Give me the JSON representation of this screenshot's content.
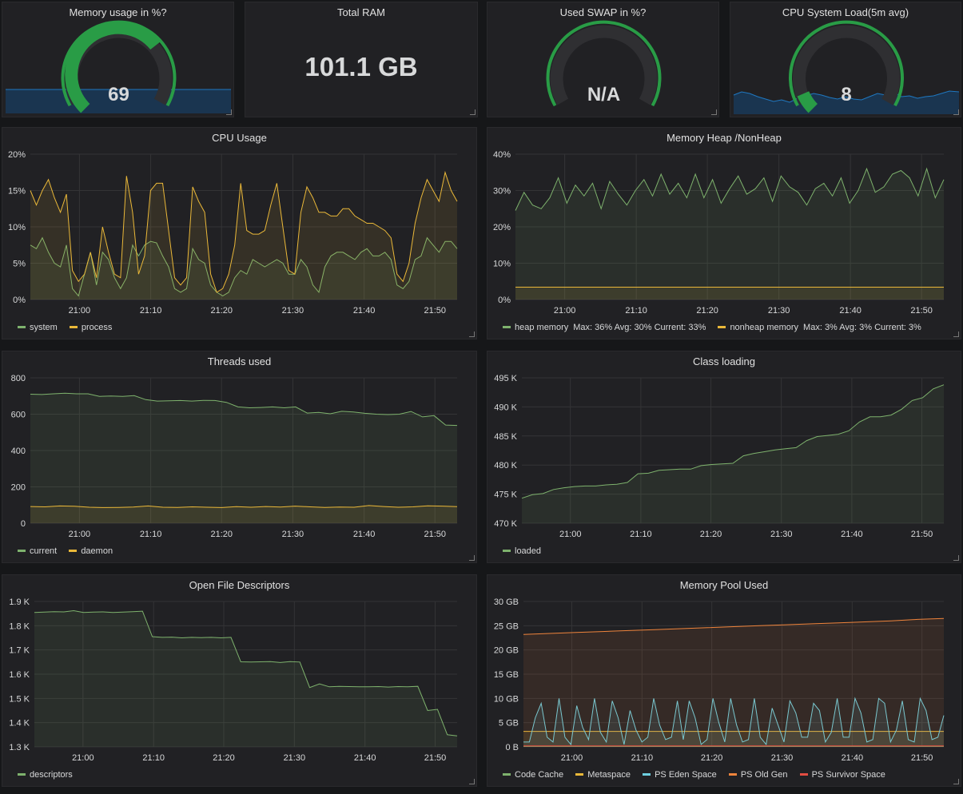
{
  "colors": {
    "background": "#161719",
    "panel": "#212124",
    "green": "#7eb26d",
    "yellow": "#eab839",
    "cyan": "#6ed0e0",
    "orange": "#ef843c",
    "red": "#e24d42",
    "gauge_green": "#299c46",
    "spark_blue": "#1f78c1"
  },
  "stat_panels": [
    {
      "title": "Memory usage in %?",
      "value": "69",
      "gauge_percent": 69
    },
    {
      "title": "Total RAM",
      "value": "101.1 GB"
    },
    {
      "title": "Used SWAP in %?",
      "value": "N/A"
    },
    {
      "title": "CPU System Load(5m avg)",
      "value": "8",
      "gauge_percent": 8
    }
  ],
  "chart_data": [
    {
      "type": "line",
      "title": "CPU Usage",
      "x_ticks": [
        "21:00",
        "21:10",
        "21:20",
        "21:30",
        "21:40",
        "21:50"
      ],
      "y_ticks": [
        "0%",
        "5%",
        "10%",
        "15%",
        "20%"
      ],
      "ylim": [
        0,
        20
      ],
      "series": [
        {
          "name": "system",
          "color": "#7eb26d",
          "values": [
            7.5,
            7.0,
            8.5,
            6.5,
            5.0,
            4.5,
            7.5,
            1.5,
            0.5,
            3.5,
            6.5,
            2.0,
            6.5,
            5.5,
            3.0,
            1.5,
            3.0,
            7.5,
            6.0,
            7.5,
            8.0,
            7.8,
            6.0,
            4.5,
            1.5,
            1.0,
            1.5,
            7.0,
            5.5,
            5.0,
            2.0,
            1.0,
            0.5,
            1.0,
            3.0,
            4.0,
            3.5,
            5.5,
            5.0,
            4.5,
            5.0,
            5.5,
            5.0,
            3.5,
            3.5,
            5.5,
            4.5,
            2.0,
            1.0,
            4.5,
            6.0,
            6.5,
            6.5,
            6.0,
            5.5,
            6.5,
            7.0,
            6.0,
            6.0,
            6.5,
            5.5,
            2.0,
            1.5,
            2.5,
            5.5,
            6.0,
            8.5,
            7.5,
            6.5,
            8.0,
            8.0,
            7.0
          ]
        },
        {
          "name": "process",
          "color": "#eab839",
          "values": [
            15.0,
            13.0,
            15.0,
            16.5,
            14.0,
            12.0,
            14.5,
            4.0,
            2.5,
            3.5,
            6.5,
            3.0,
            10.0,
            6.5,
            3.5,
            3.0,
            17.0,
            12.0,
            3.5,
            6.0,
            15.0,
            16.0,
            16.0,
            9.5,
            3.0,
            2.0,
            3.0,
            15.5,
            13.5,
            12.0,
            3.5,
            1.0,
            1.5,
            3.5,
            7.5,
            16.0,
            9.5,
            9.0,
            9.0,
            9.5,
            13.0,
            16.0,
            10.0,
            4.0,
            3.5,
            12.0,
            15.5,
            14.0,
            12.0,
            12.0,
            11.5,
            11.5,
            12.5,
            12.5,
            11.5,
            11.0,
            10.5,
            10.5,
            10.0,
            9.5,
            8.5,
            3.5,
            2.5,
            5.0,
            10.5,
            14.0,
            16.5,
            15.0,
            13.5,
            17.5,
            15.0,
            13.5
          ]
        }
      ],
      "legend": [
        "system",
        "process"
      ]
    },
    {
      "type": "line",
      "title": "Memory Heap /NonHeap",
      "x_ticks": [
        "21:00",
        "21:10",
        "21:20",
        "21:30",
        "21:40",
        "21:50"
      ],
      "y_ticks": [
        "0%",
        "10%",
        "20%",
        "30%",
        "40%"
      ],
      "ylim": [
        0,
        40
      ],
      "series": [
        {
          "name": "heap memory",
          "color": "#7eb26d",
          "stats": "Max: 36%  Avg: 30%  Current: 33%",
          "values": [
            24.5,
            29.5,
            26.0,
            25.0,
            28.0,
            33.5,
            26.5,
            31.5,
            28.5,
            32.0,
            25.0,
            32.5,
            29.0,
            26.0,
            30.0,
            33.0,
            28.5,
            34.5,
            29.0,
            32.0,
            28.0,
            34.5,
            28.0,
            33.0,
            26.5,
            30.5,
            34.0,
            29.0,
            30.5,
            33.5,
            27.0,
            34.0,
            31.0,
            29.5,
            26.0,
            30.5,
            32.0,
            28.5,
            33.5,
            26.5,
            30.0,
            36.0,
            29.5,
            31.0,
            34.5,
            35.5,
            33.5,
            28.5,
            36.0,
            28.0,
            33.0
          ]
        },
        {
          "name": "nonheap memory",
          "color": "#eab839",
          "stats": "Max: 3%  Avg: 3%  Current: 3%",
          "values": [
            3.4,
            3.4,
            3.4,
            3.4,
            3.4,
            3.4,
            3.4,
            3.4,
            3.4,
            3.4,
            3.4
          ]
        }
      ],
      "legend": [
        "heap memory",
        "nonheap memory"
      ]
    },
    {
      "type": "line",
      "title": "Threads used",
      "x_ticks": [
        "21:00",
        "21:10",
        "21:20",
        "21:30",
        "21:40",
        "21:50"
      ],
      "y_ticks": [
        "0",
        "200",
        "400",
        "600",
        "800"
      ],
      "ylim": [
        0,
        800
      ],
      "series": [
        {
          "name": "current",
          "color": "#7eb26d",
          "values": [
            710,
            708,
            712,
            715,
            712,
            712,
            698,
            700,
            698,
            702,
            680,
            672,
            674,
            675,
            672,
            676,
            675,
            665,
            640,
            635,
            637,
            640,
            635,
            640,
            606,
            610,
            602,
            616,
            612,
            605,
            600,
            598,
            600,
            615,
            585,
            592,
            540,
            538
          ]
        },
        {
          "name": "daemon",
          "color": "#eab839",
          "values": [
            92,
            90,
            95,
            93,
            88,
            86,
            87,
            89,
            95,
            88,
            87,
            90,
            88,
            86,
            91,
            88,
            92,
            89,
            94,
            90,
            87,
            89,
            88,
            97,
            92,
            88,
            90,
            96,
            94,
            91
          ]
        }
      ],
      "legend": [
        "current",
        "daemon"
      ]
    },
    {
      "type": "line",
      "title": "Class loading",
      "x_ticks": [
        "21:00",
        "21:10",
        "21:20",
        "21:30",
        "21:40",
        "21:50"
      ],
      "y_ticks": [
        "470 K",
        "475 K",
        "480 K",
        "485 K",
        "490 K",
        "495 K"
      ],
      "ylim": [
        470,
        495
      ],
      "series": [
        {
          "name": "loaded",
          "color": "#7eb26d",
          "values": [
            474.3,
            474.9,
            475.1,
            475.8,
            476.1,
            476.3,
            476.4,
            476.4,
            476.6,
            476.7,
            477.0,
            478.5,
            478.6,
            479.1,
            479.2,
            479.3,
            479.3,
            479.9,
            480.1,
            480.2,
            480.3,
            481.6,
            482.0,
            482.3,
            482.6,
            482.8,
            483.0,
            484.2,
            484.9,
            485.1,
            485.3,
            485.9,
            487.4,
            488.3,
            488.3,
            488.6,
            489.6,
            491.1,
            491.6,
            493.1,
            493.8
          ]
        }
      ],
      "legend": [
        "loaded"
      ]
    },
    {
      "type": "line",
      "title": "Open File Descriptors",
      "x_ticks": [
        "21:00",
        "21:10",
        "21:20",
        "21:30",
        "21:40",
        "21:50"
      ],
      "y_ticks": [
        "1.3 K",
        "1.4 K",
        "1.5 K",
        "1.6 K",
        "1.7 K",
        "1.8 K",
        "1.9 K"
      ],
      "ylim": [
        1300,
        1900
      ],
      "series": [
        {
          "name": "descriptors",
          "color": "#7eb26d",
          "values": [
            1855,
            1856,
            1858,
            1857,
            1862,
            1855,
            1856,
            1857,
            1855,
            1856,
            1858,
            1860,
            1755,
            1752,
            1753,
            1750,
            1752,
            1751,
            1752,
            1750,
            1752,
            1651,
            1650,
            1651,
            1652,
            1648,
            1652,
            1650,
            1545,
            1560,
            1548,
            1550,
            1549,
            1548,
            1548,
            1549,
            1547,
            1549,
            1548,
            1550,
            1450,
            1455,
            1350,
            1345
          ]
        }
      ],
      "legend": [
        "descriptors"
      ]
    },
    {
      "type": "line",
      "title": "Memory Pool Used",
      "x_ticks": [
        "21:00",
        "21:10",
        "21:20",
        "21:30",
        "21:40",
        "21:50"
      ],
      "y_ticks": [
        "0 B",
        "5 GB",
        "10 GB",
        "15 GB",
        "20 GB",
        "25 GB",
        "30 GB"
      ],
      "ylim": [
        0,
        30
      ],
      "series": [
        {
          "name": "Code Cache",
          "color": "#7eb26d",
          "values": [
            0.1,
            0.1,
            0.1,
            0.1,
            0.1,
            0.1,
            0.1,
            0.1,
            0.1,
            0.1,
            0.1
          ]
        },
        {
          "name": "Metaspace",
          "color": "#eab839",
          "values": [
            3.2,
            3.2,
            3.2,
            3.2,
            3.2,
            3.2,
            3.2,
            3.2,
            3.2,
            3.2,
            3.2
          ]
        },
        {
          "name": "PS Eden Space",
          "color": "#6ed0e0",
          "values": [
            1.0,
            1.0,
            6.0,
            9.0,
            2.0,
            1.0,
            10.0,
            2.0,
            0.5,
            8.5,
            4.0,
            1.5,
            10.0,
            3.0,
            1.0,
            9.5,
            6.0,
            0.5,
            7.5,
            3.5,
            1.0,
            2.0,
            10.0,
            4.5,
            1.5,
            2.0,
            9.5,
            1.5,
            9.5,
            6.0,
            0.5,
            1.5,
            10.0,
            5.0,
            1.0,
            10.0,
            4.5,
            1.0,
            1.5,
            10.0,
            2.0,
            0.5,
            8.0,
            4.5,
            1.0,
            9.5,
            7.0,
            2.0,
            2.0,
            9.0,
            7.5,
            1.0,
            3.0,
            10.0,
            2.0,
            2.0,
            10.0,
            7.0,
            1.0,
            1.5,
            10.0,
            9.0,
            1.0,
            3.5,
            9.5,
            1.5,
            1.0,
            10.0,
            7.5,
            1.5,
            2.0,
            6.5
          ]
        },
        {
          "name": "PS Old Gen",
          "color": "#ef843c",
          "values": [
            23.2,
            23.4,
            23.6,
            23.8,
            24.0,
            24.2,
            24.4,
            24.6,
            24.8,
            25.0,
            25.2,
            25.4,
            25.6,
            25.8,
            26.0,
            26.3,
            26.5
          ]
        },
        {
          "name": "PS Survivor Space",
          "color": "#e24d42",
          "values": [
            0.2,
            0.2,
            0.2,
            0.2,
            0.2,
            0.2,
            0.2,
            0.2,
            0.2,
            0.2,
            0.2
          ]
        }
      ],
      "legend": [
        "Code Cache",
        "Metaspace",
        "PS Eden Space",
        "PS Old Gen",
        "PS Survivor Space"
      ]
    }
  ]
}
